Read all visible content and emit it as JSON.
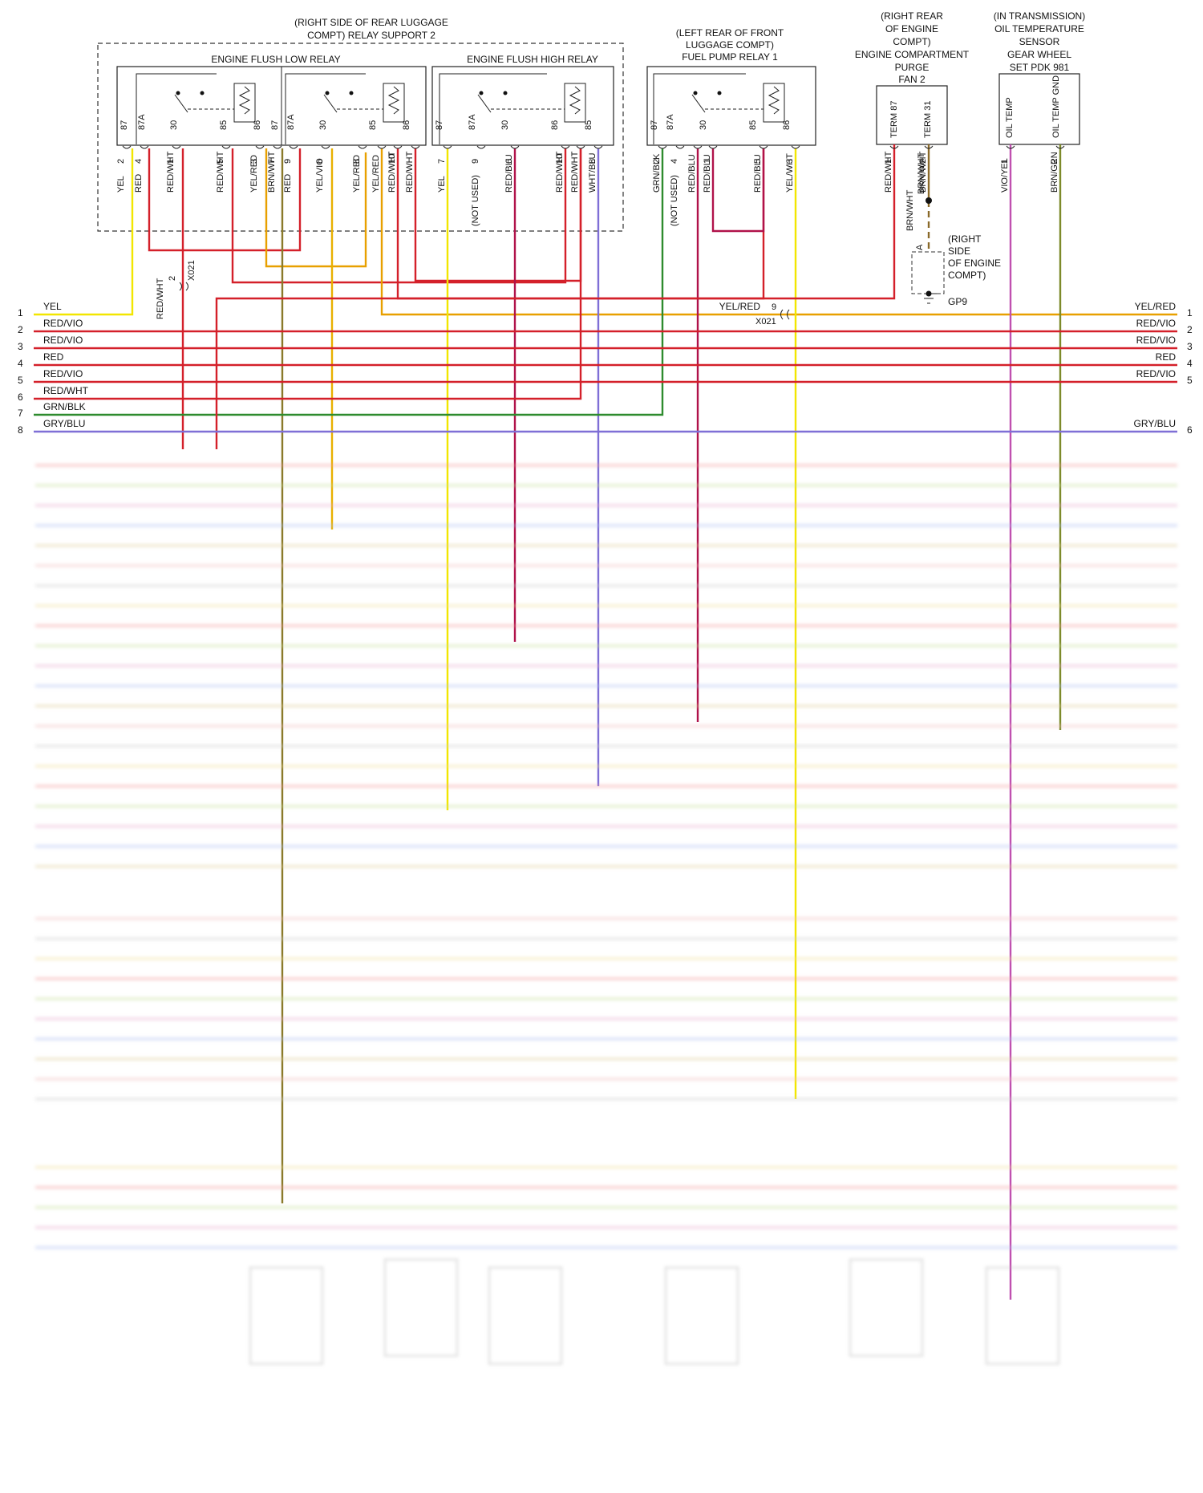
{
  "groups": {
    "relay_support": [
      "(RIGHT SIDE OF REAR LUGGAGE",
      "COMPT) RELAY SUPPORT 2"
    ],
    "fuel_pump_loc": [
      "(LEFT REAR OF FRONT",
      "LUGGAGE COMPT)",
      "FUEL PUMP RELAY 1"
    ],
    "purge_fan": [
      "(RIGHT REAR",
      "OF ENGINE",
      "COMPT)",
      "ENGINE COMPARTMENT",
      "PURGE",
      "FAN 2"
    ],
    "oil_sensor": [
      "(IN TRANSMISSION)",
      "OIL TEMPERATURE",
      "SENSOR",
      "GEAR WHEEL",
      "SET PDK 981"
    ]
  },
  "relays": {
    "low": "ENGINE FLUSH LOW RELAY",
    "high": "ENGINE FLUSH HIGH RELAY"
  },
  "relay_terms": {
    "low_a": [
      "87",
      "87A",
      "30",
      "85",
      "86"
    ],
    "low_b": [
      "87",
      "87A",
      "30",
      "85",
      "86"
    ],
    "high": [
      "87",
      "87A",
      "30",
      "86",
      "85"
    ],
    "fuel": [
      "87",
      "87A",
      "30",
      "85",
      "86"
    ]
  },
  "fan_terms": [
    "TERM 87",
    "TERM 31"
  ],
  "sensor_terms": [
    "OIL TEMP",
    "OIL TEMP GND"
  ],
  "pin_wires": [
    {
      "pin": "2",
      "wire": "YEL"
    },
    {
      "pin": "4",
      "wire": "RED"
    },
    {
      "pin": "1",
      "wire": "RED/WHT"
    },
    {
      "pin": "5",
      "wire": "RED/WHT"
    },
    {
      "pin": "3",
      "wire": "YEL/RED"
    },
    {
      "pin": "7",
      "wire": "BRN/WHT"
    },
    {
      "pin": "9",
      "wire": "RED"
    },
    {
      "pin": "6",
      "wire": "YEL/VIO"
    },
    {
      "pin": "8",
      "wire": "YEL/RED"
    },
    {
      "pin": "",
      "wire": "YEL/RED"
    },
    {
      "pin": "10",
      "wire": "RED/WHT"
    },
    {
      "pin": "",
      "wire": "RED/WHT"
    },
    {
      "pin": "7",
      "wire": "YEL"
    },
    {
      "pin": "9",
      "wire": "(NOT USED)"
    },
    {
      "pin": "6",
      "wire": "RED/BLU"
    },
    {
      "pin": "10",
      "wire": "RED/WHT"
    },
    {
      "pin": "",
      "wire": "RED/WHT"
    },
    {
      "pin": "8",
      "wire": "WHT/BLU"
    },
    {
      "pin": "2",
      "wire": "GRN/BLK"
    },
    {
      "pin": "4",
      "wire": "(NOT USED)"
    },
    {
      "pin": "",
      "wire": "RED/BLU"
    },
    {
      "pin": "1",
      "wire": "RED/BLU"
    },
    {
      "pin": "5",
      "wire": "RED/BLU"
    },
    {
      "pin": "3",
      "wire": "YEL/WHT"
    },
    {
      "pin": "1",
      "wire": "RED/WHT"
    },
    {
      "pin": "2",
      "wire": "BRN/WHT"
    },
    {
      "pin": "1",
      "wire": "VIO/YEL"
    },
    {
      "pin": "2",
      "wire": "BRN/GRN"
    }
  ],
  "ground": {
    "upper_wire": "BRN/WHT",
    "lower_wire": "BRN/WHT",
    "pin": "A",
    "location": [
      "(RIGHT",
      "SIDE",
      "OF ENGINE",
      "COMPT)"
    ],
    "name": "GP9"
  },
  "connector_x021_upper": {
    "pin": "2",
    "name": "X021",
    "wire": "RED/WHT"
  },
  "connector_x021_mid": {
    "pin": "9",
    "name": "X021",
    "wire": "YEL/RED"
  },
  "bus_left": [
    {
      "n": "1",
      "label": "YEL"
    },
    {
      "n": "2",
      "label": "RED/VIO"
    },
    {
      "n": "3",
      "label": "RED/VIO"
    },
    {
      "n": "4",
      "label": "RED"
    },
    {
      "n": "5",
      "label": "RED/VIO"
    },
    {
      "n": "6",
      "label": "RED/WHT"
    },
    {
      "n": "7",
      "label": "GRN/BLK"
    },
    {
      "n": "8",
      "label": "GRY/BLU"
    }
  ],
  "bus_right": [
    {
      "n": "1",
      "label": "YEL/RED"
    },
    {
      "n": "2",
      "label": "RED/VIO"
    },
    {
      "n": "3",
      "label": "RED/VIO"
    },
    {
      "n": "4",
      "label": "RED"
    },
    {
      "n": "5",
      "label": "RED/VIO"
    },
    {
      "n": "6",
      "label": "GRY/BLU"
    }
  ],
  "colors": {
    "yellow": "#f2e600",
    "red": "#d4202a",
    "crimson": "#b0124a",
    "orange": "#e8a000",
    "green": "#2e8b2e",
    "blue": "#7f6fd6",
    "olive": "#7d8a2a",
    "violet": "#c050b0",
    "brown": "#8a6a2a"
  }
}
